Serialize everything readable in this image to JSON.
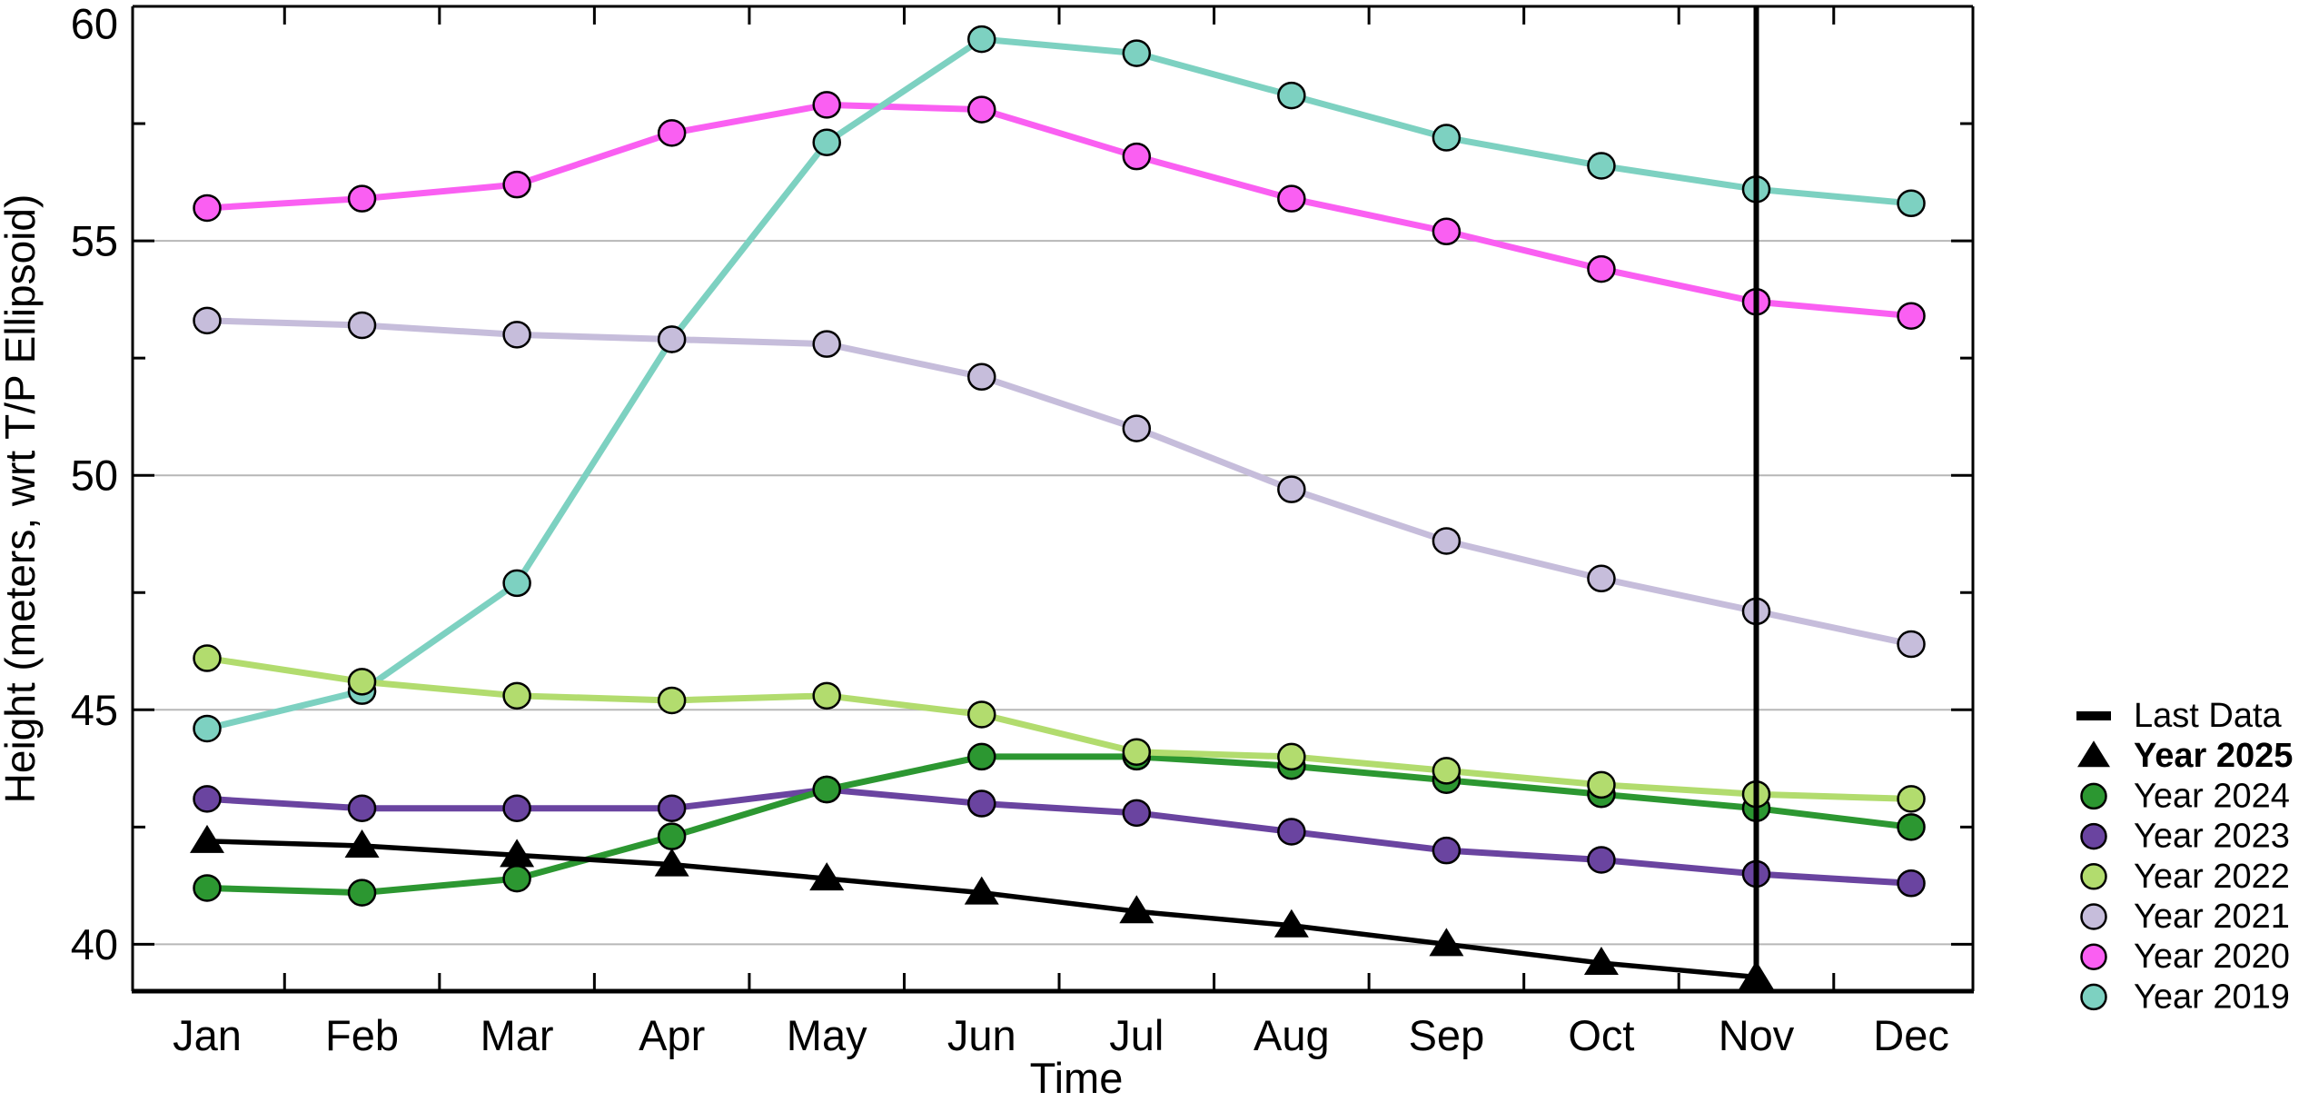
{
  "chart_data": {
    "type": "line",
    "title": "",
    "xlabel": "Time",
    "ylabel": "Height (meters, wrt T/P Ellipsoid)",
    "categories": [
      "Jan",
      "Feb",
      "Mar",
      "Apr",
      "May",
      "Jun",
      "Jul",
      "Aug",
      "Sep",
      "Oct",
      "Nov",
      "Dec"
    ],
    "ylim": [
      39.0,
      60.0
    ],
    "yticks_major": [
      40,
      45,
      50,
      55,
      60
    ],
    "yticks_minor": [
      42.5,
      47.5,
      52.5,
      57.5
    ],
    "grid": "horizontal-major-only",
    "legend_position": "right-outside",
    "annotation_vline": {
      "x_category": "Nov",
      "label": "Last Data",
      "color": "#000000"
    },
    "series": [
      {
        "name": "Year 2025",
        "color": "#000000",
        "marker": "triangle",
        "values": [
          42.2,
          42.1,
          41.9,
          41.7,
          41.4,
          41.1,
          40.7,
          40.4,
          40.0,
          39.6,
          39.3,
          null
        ]
      },
      {
        "name": "Year 2024",
        "color": "#2c9731",
        "marker": "circle",
        "values": [
          41.2,
          41.1,
          41.4,
          42.3,
          43.3,
          44.0,
          44.0,
          43.8,
          43.5,
          43.2,
          42.9,
          42.5
        ]
      },
      {
        "name": "Year 2023",
        "color": "#6a44a0",
        "marker": "circle",
        "values": [
          43.1,
          42.9,
          42.9,
          42.9,
          43.3,
          43.0,
          42.8,
          42.4,
          42.0,
          41.8,
          41.5,
          41.3
        ]
      },
      {
        "name": "Year 2022",
        "color": "#b2dc6e",
        "marker": "circle",
        "values": [
          46.1,
          45.6,
          45.3,
          45.2,
          45.3,
          44.9,
          44.1,
          44.0,
          43.7,
          43.4,
          43.2,
          43.1
        ]
      },
      {
        "name": "Year 2021",
        "color": "#c6bddb",
        "marker": "circle",
        "values": [
          53.3,
          53.2,
          53.0,
          52.9,
          52.8,
          52.1,
          51.0,
          49.7,
          48.6,
          47.8,
          47.1,
          46.4
        ]
      },
      {
        "name": "Year 2020",
        "color": "#fa5ff2",
        "marker": "circle",
        "values": [
          55.7,
          55.9,
          56.2,
          57.3,
          57.9,
          57.8,
          56.8,
          55.9,
          55.2,
          54.4,
          53.7,
          53.4
        ]
      },
      {
        "name": "Year 2019",
        "color": "#7dd1c1",
        "marker": "circle",
        "values": [
          44.6,
          45.4,
          47.7,
          52.9,
          57.1,
          59.3,
          59.0,
          58.1,
          57.2,
          56.6,
          56.1,
          55.8
        ]
      }
    ],
    "legend_items": [
      {
        "label": "Last Data",
        "marker": "dash",
        "color": "#000000",
        "bold": false
      },
      {
        "label": "Year 2025",
        "marker": "triangle",
        "color": "#000000",
        "bold": true
      },
      {
        "label": "Year 2024",
        "marker": "circle",
        "color": "#2c9731",
        "bold": false
      },
      {
        "label": "Year 2023",
        "marker": "circle",
        "color": "#6a44a0",
        "bold": false
      },
      {
        "label": "Year 2022",
        "marker": "circle",
        "color": "#b2dc6e",
        "bold": false
      },
      {
        "label": "Year 2021",
        "marker": "circle",
        "color": "#c6bddb",
        "bold": false
      },
      {
        "label": "Year 2020",
        "marker": "circle",
        "color": "#fa5ff2",
        "bold": false
      },
      {
        "label": "Year 2019",
        "marker": "circle",
        "color": "#7dd1c1",
        "bold": false
      }
    ],
    "colors": {
      "grid": "#b7b7b7",
      "axis": "#000000",
      "background": "#ffffff"
    }
  }
}
